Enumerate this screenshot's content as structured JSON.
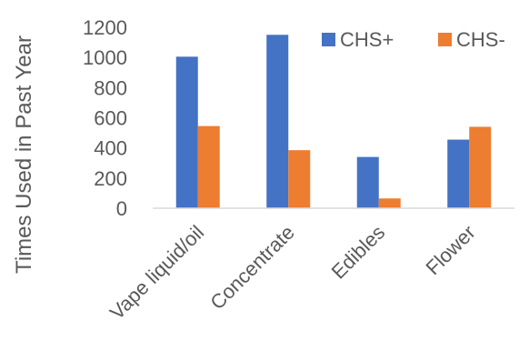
{
  "chart_data": {
    "type": "bar",
    "title": "",
    "xlabel": "",
    "ylabel": "Times Used in Past Year",
    "categories": [
      "Vape liquid/oil",
      "Concentrate",
      "Edibles",
      "Flower"
    ],
    "series": [
      {
        "name": "CHS+",
        "color": "#4472C4",
        "values": [
          1005,
          1150,
          340,
          455
        ]
      },
      {
        "name": "CHS-",
        "color": "#ED7D31",
        "values": [
          545,
          385,
          65,
          540
        ]
      }
    ],
    "yticks": [
      0,
      200,
      400,
      600,
      800,
      1000,
      1200
    ],
    "ylim": [
      0,
      1200
    ],
    "grid": false,
    "legend_position": "top-right"
  }
}
